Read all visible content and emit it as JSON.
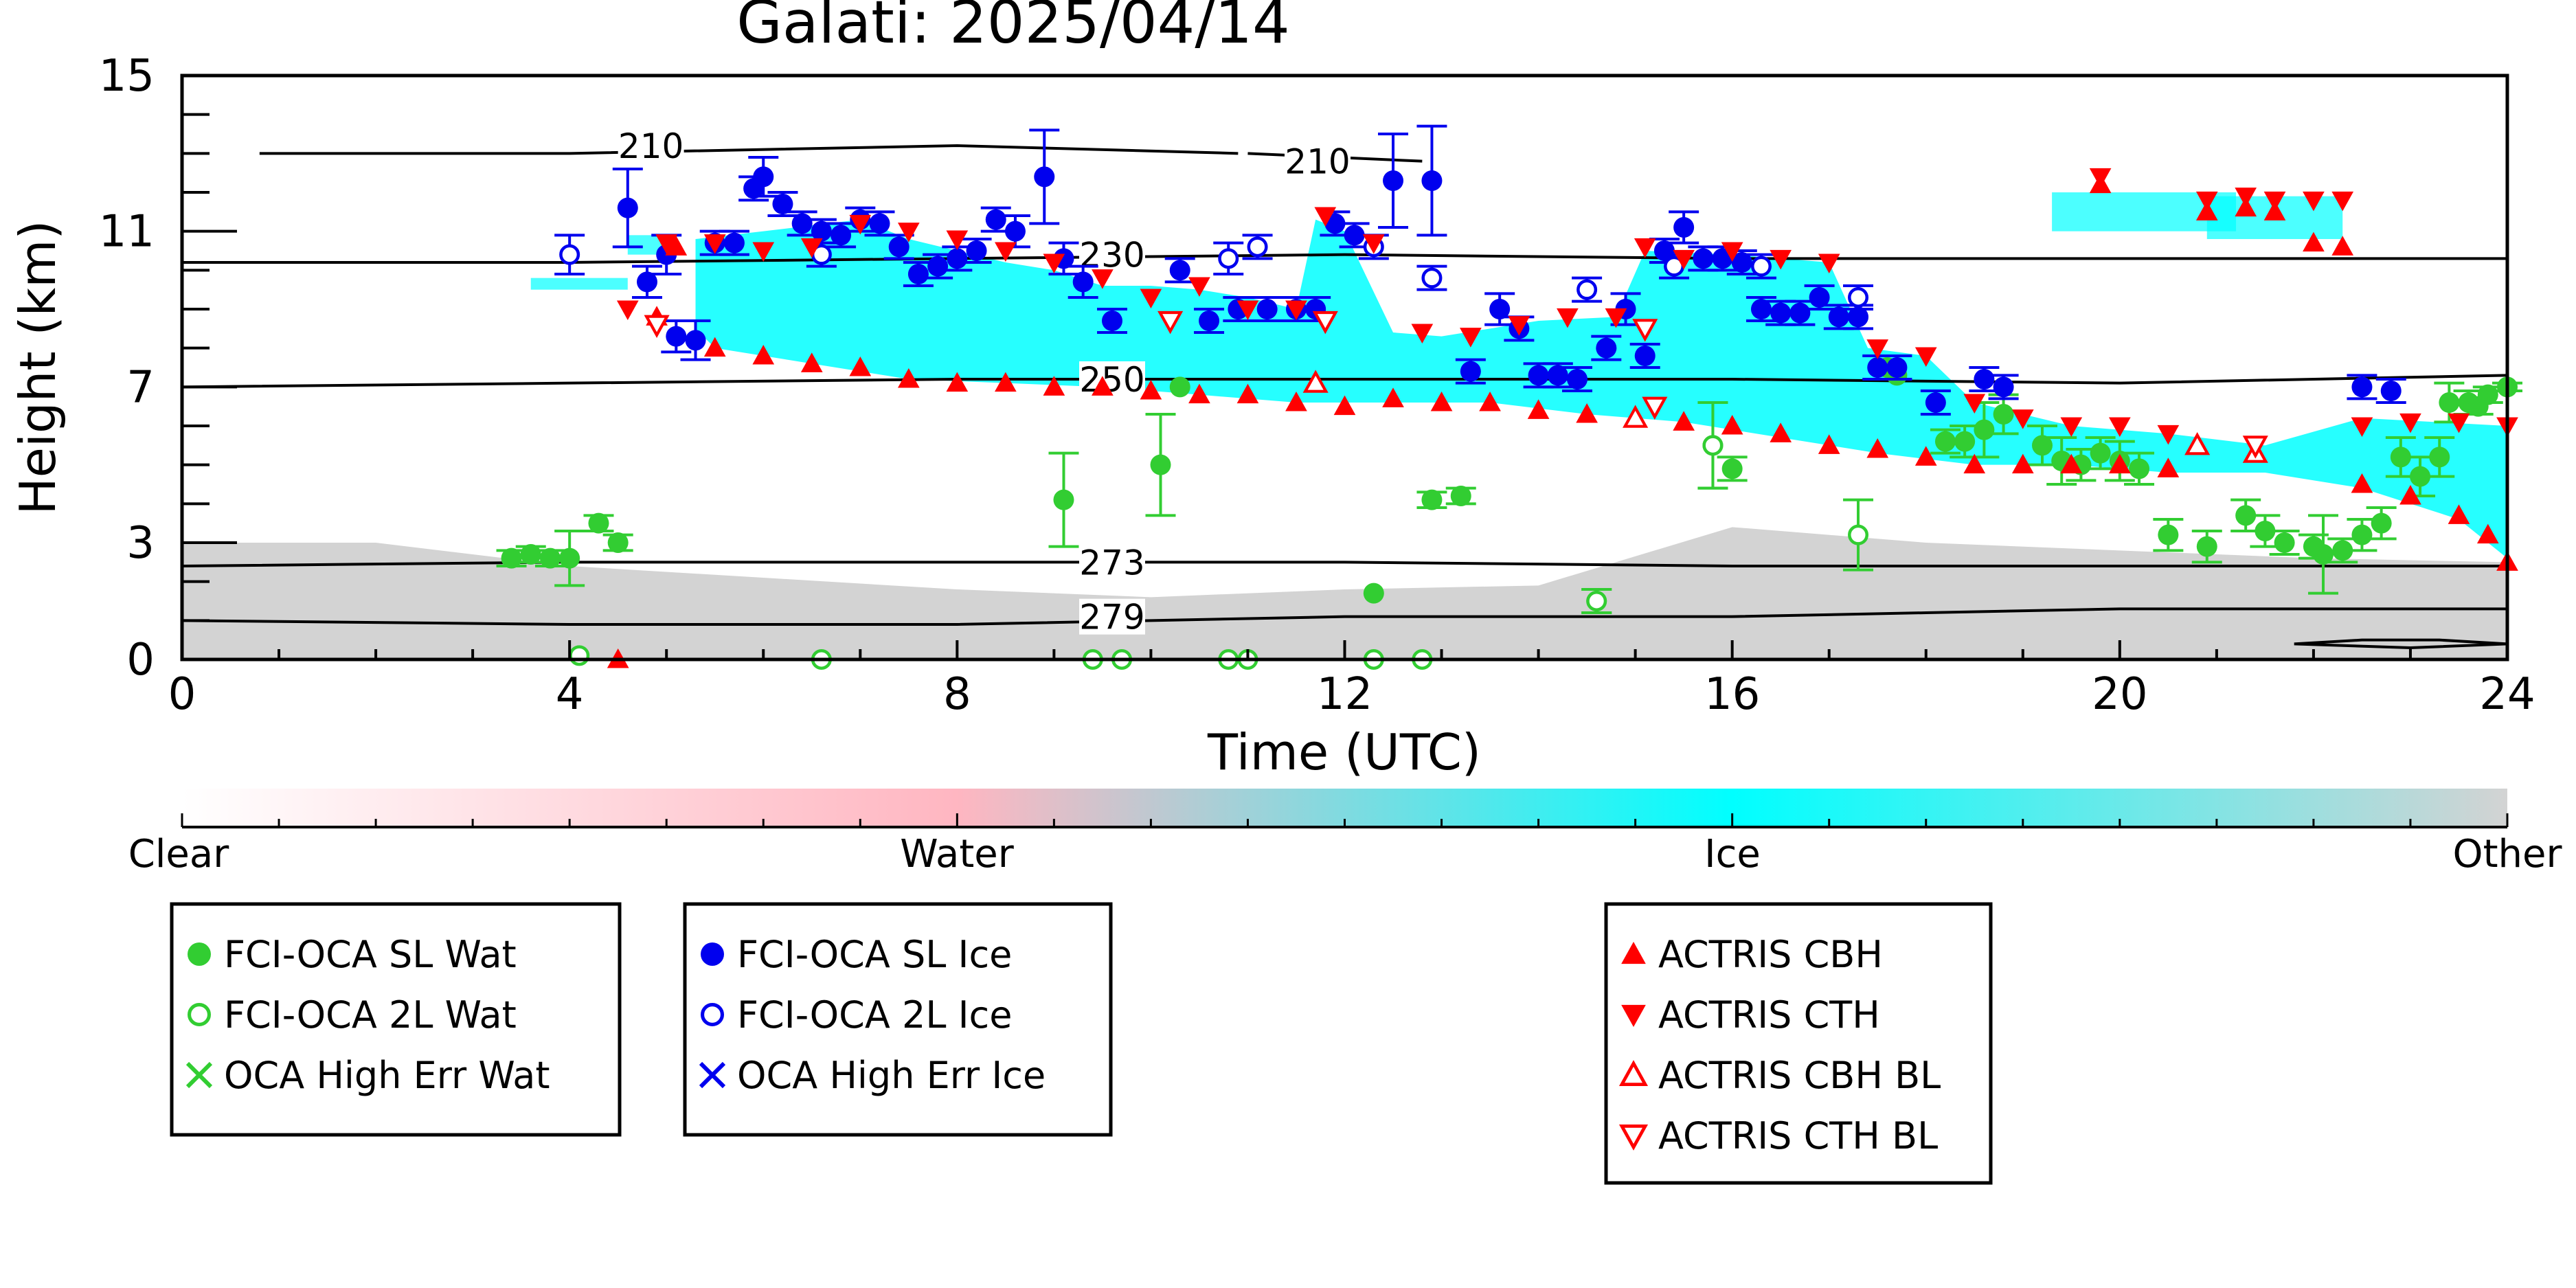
{
  "chart_data": {
    "type": "scatter",
    "title": "Galati: 2025/04/14",
    "xlabel": "Time (UTC)",
    "ylabel": "Height (km)",
    "xlim": [
      0,
      24
    ],
    "ylim": [
      0,
      15
    ],
    "xticks": [
      0,
      4,
      8,
      12,
      16,
      20,
      24
    ],
    "yticks": [
      0,
      3,
      7,
      11,
      15
    ],
    "grid": false,
    "colorbar": {
      "labels": [
        "Clear",
        "Water",
        "Ice",
        "Other"
      ],
      "colors": [
        "#ffffff",
        "#ffb6c1",
        "#00ffff",
        "#d3d3d3"
      ]
    },
    "contours": [
      {
        "label": "210",
        "x": [
          0.8,
          4.0,
          8.0,
          10.9
        ],
        "y": [
          13.0,
          13.0,
          13.2,
          13.0
        ]
      },
      {
        "label": "210",
        "x": [
          11.0,
          12.8
        ],
        "y": [
          13.0,
          12.8
        ]
      },
      {
        "label": "230",
        "x": [
          0,
          4,
          8,
          12,
          16,
          20,
          24
        ],
        "y": [
          10.2,
          10.2,
          10.3,
          10.4,
          10.3,
          10.3,
          10.3
        ]
      },
      {
        "label": "250",
        "x": [
          0,
          4,
          8,
          12,
          16,
          20,
          24
        ],
        "y": [
          7.0,
          7.1,
          7.2,
          7.2,
          7.2,
          7.1,
          7.3
        ]
      },
      {
        "label": "273",
        "x": [
          0,
          4,
          8,
          12,
          16,
          20,
          24
        ],
        "y": [
          2.4,
          2.5,
          2.5,
          2.5,
          2.4,
          2.4,
          2.4
        ]
      },
      {
        "label": "279",
        "x": [
          0,
          4,
          8,
          12,
          16,
          18,
          20,
          24
        ],
        "y": [
          1.0,
          0.9,
          0.9,
          1.1,
          1.1,
          1.2,
          1.3,
          1.3
        ]
      },
      {
        "label": "",
        "x": [
          21.8,
          22.5,
          23.3,
          24.0,
          23.0,
          21.8
        ],
        "y": [
          0.4,
          0.5,
          0.5,
          0.4,
          0.3,
          0.4
        ]
      }
    ],
    "series": [
      {
        "name": "FCI-OCA SL Wat",
        "color": "#32cd32",
        "marker": "filled-circle",
        "points": [
          [
            3.4,
            2.6,
            0.2
          ],
          [
            3.6,
            2.7,
            0.2
          ],
          [
            3.8,
            2.6,
            0.2
          ],
          [
            4.0,
            2.6,
            0.7
          ],
          [
            4.3,
            3.5,
            0.2
          ],
          [
            4.5,
            3.0,
            0.2
          ],
          [
            9.1,
            4.1,
            1.2
          ],
          [
            10.1,
            5.0,
            1.3
          ],
          [
            10.3,
            7.0,
            0
          ],
          [
            12.3,
            1.7,
            0
          ],
          [
            12.9,
            4.1,
            0.2
          ],
          [
            13.2,
            4.2,
            0.2
          ],
          [
            14.6,
            1.5,
            0.3
          ],
          [
            15.8,
            5.5,
            1.1
          ],
          [
            16.0,
            4.9,
            0.3
          ],
          [
            17.6,
            7.5,
            0
          ],
          [
            17.7,
            7.3,
            0
          ],
          [
            18.2,
            5.6,
            0.3
          ],
          [
            18.4,
            5.6,
            0.4
          ],
          [
            18.6,
            5.9,
            0.7
          ],
          [
            18.8,
            6.3,
            0.5
          ],
          [
            19.2,
            5.5,
            0.5
          ],
          [
            19.4,
            5.1,
            0.6
          ],
          [
            19.6,
            5.0,
            0.4
          ],
          [
            19.8,
            5.3,
            0.4
          ],
          [
            20.0,
            5.1,
            0.5
          ],
          [
            20.2,
            4.9,
            0.4
          ],
          [
            20.5,
            3.2,
            0.4
          ],
          [
            20.9,
            2.9,
            0.4
          ],
          [
            21.3,
            3.7,
            0.4
          ],
          [
            21.5,
            3.3,
            0.4
          ],
          [
            21.7,
            3.0,
            0.3
          ],
          [
            22.0,
            2.9,
            0.3
          ],
          [
            22.1,
            2.7,
            1.0
          ],
          [
            22.3,
            2.8,
            0.3
          ],
          [
            22.5,
            3.2,
            0.4
          ],
          [
            22.7,
            3.5,
            0.4
          ],
          [
            22.9,
            5.2,
            0.5
          ],
          [
            23.1,
            4.7,
            0.5
          ],
          [
            23.3,
            5.2,
            0.5
          ],
          [
            23.4,
            6.6,
            0.5
          ],
          [
            23.6,
            6.6,
            0.3
          ],
          [
            23.7,
            6.5,
            0.2
          ],
          [
            23.8,
            6.8,
            0.2
          ],
          [
            24.0,
            7.0,
            0.1
          ]
        ]
      },
      {
        "name": "FCI-OCA 2L Wat",
        "color": "#32cd32",
        "marker": "open-circle",
        "points": [
          [
            4.1,
            0.1,
            0
          ],
          [
            6.6,
            0.0,
            0
          ],
          [
            9.4,
            0.0,
            0
          ],
          [
            9.7,
            0.0,
            0
          ],
          [
            10.8,
            0.0,
            0
          ],
          [
            11.0,
            0.0,
            0
          ],
          [
            12.3,
            0.0,
            0
          ],
          [
            12.8,
            0.0,
            0
          ],
          [
            14.6,
            1.5,
            0.3
          ],
          [
            15.8,
            5.5,
            1.1
          ],
          [
            17.3,
            3.2,
            0.9
          ]
        ]
      },
      {
        "name": "OCA High Err Wat",
        "color": "#32cd32",
        "marker": "x",
        "points": []
      },
      {
        "name": "FCI-OCA SL Ice",
        "color": "#0000ee",
        "marker": "filled-circle",
        "points": [
          [
            4.6,
            11.6,
            1.0
          ],
          [
            4.8,
            9.7,
            0.4
          ],
          [
            5.0,
            10.4,
            0.5
          ],
          [
            5.1,
            8.3,
            0.4
          ],
          [
            5.3,
            8.2,
            0.5
          ],
          [
            5.5,
            10.7,
            0.3
          ],
          [
            5.7,
            10.7,
            0.3
          ],
          [
            5.9,
            12.1,
            0.3
          ],
          [
            6.0,
            12.4,
            0.5
          ],
          [
            6.2,
            11.7,
            0.3
          ],
          [
            6.4,
            11.2,
            0.3
          ],
          [
            6.6,
            11.0,
            0.3
          ],
          [
            6.8,
            10.9,
            0.3
          ],
          [
            7.0,
            11.3,
            0.3
          ],
          [
            7.2,
            11.2,
            0.3
          ],
          [
            7.4,
            10.6,
            0.3
          ],
          [
            7.6,
            9.9,
            0.3
          ],
          [
            7.8,
            10.1,
            0.3
          ],
          [
            8.0,
            10.3,
            0.3
          ],
          [
            8.2,
            10.5,
            0.3
          ],
          [
            8.4,
            11.3,
            0.3
          ],
          [
            8.6,
            11.0,
            0.4
          ],
          [
            8.9,
            12.4,
            1.2
          ],
          [
            9.1,
            10.3,
            0.4
          ],
          [
            9.3,
            9.7,
            0.4
          ],
          [
            9.6,
            8.7,
            0.3
          ],
          [
            10.3,
            10.0,
            0.3
          ],
          [
            10.6,
            8.7,
            0.3
          ],
          [
            10.9,
            9.0,
            0.3
          ],
          [
            11.2,
            9.0,
            0.3
          ],
          [
            11.5,
            9.0,
            0.3
          ],
          [
            11.7,
            9.0,
            0.3
          ],
          [
            11.9,
            11.2,
            0.3
          ],
          [
            12.1,
            10.9,
            0.3
          ],
          [
            12.5,
            12.3,
            1.2
          ],
          [
            12.9,
            12.3,
            1.4
          ],
          [
            13.3,
            7.4,
            0.3
          ],
          [
            13.6,
            9.0,
            0.4
          ],
          [
            13.8,
            8.5,
            0.3
          ],
          [
            14.0,
            7.3,
            0.3
          ],
          [
            14.2,
            7.3,
            0.3
          ],
          [
            14.4,
            7.2,
            0.3
          ],
          [
            14.7,
            8.0,
            0.3
          ],
          [
            14.9,
            9.0,
            0.4
          ],
          [
            15.1,
            7.8,
            0.3
          ],
          [
            15.3,
            10.5,
            0.3
          ],
          [
            15.5,
            11.1,
            0.4
          ],
          [
            15.7,
            10.3,
            0.3
          ],
          [
            15.9,
            10.3,
            0.3
          ],
          [
            16.1,
            10.2,
            0.3
          ],
          [
            16.3,
            9.0,
            0.3
          ],
          [
            16.5,
            8.9,
            0.3
          ],
          [
            16.7,
            8.9,
            0.3
          ],
          [
            16.9,
            9.3,
            0.3
          ],
          [
            17.1,
            8.8,
            0.3
          ],
          [
            17.3,
            8.8,
            0.3
          ],
          [
            17.5,
            7.5,
            0.3
          ],
          [
            17.7,
            7.5,
            0.3
          ],
          [
            18.1,
            6.6,
            0.3
          ],
          [
            18.6,
            7.2,
            0.3
          ],
          [
            18.8,
            7.0,
            0.3
          ],
          [
            22.5,
            7.0,
            0.3
          ],
          [
            22.8,
            6.9,
            0.3
          ]
        ]
      },
      {
        "name": "FCI-OCA 2L Ice",
        "color": "#0000ee",
        "marker": "open-circle",
        "points": [
          [
            4.0,
            10.4,
            0.5
          ],
          [
            6.6,
            10.4,
            0.3
          ],
          [
            10.8,
            10.3,
            0.4
          ],
          [
            11.1,
            10.6,
            0.3
          ],
          [
            12.3,
            10.6,
            0.3
          ],
          [
            12.9,
            9.8,
            0.3
          ],
          [
            14.5,
            9.5,
            0.3
          ],
          [
            15.4,
            10.1,
            0.3
          ],
          [
            16.3,
            10.1,
            0.3
          ],
          [
            17.3,
            9.3,
            0.3
          ]
        ]
      },
      {
        "name": "OCA High Err Ice",
        "color": "#0000ee",
        "marker": "x",
        "points": []
      },
      {
        "name": "ACTRIS CBH",
        "color": "#ff0000",
        "marker": "up-triangle",
        "points": [
          [
            4.5,
            0.0
          ],
          [
            4.9,
            8.8
          ],
          [
            5.1,
            10.6
          ],
          [
            5.5,
            8.0
          ],
          [
            6.0,
            7.8
          ],
          [
            6.5,
            7.6
          ],
          [
            7.0,
            7.5
          ],
          [
            7.5,
            7.2
          ],
          [
            8.0,
            7.1
          ],
          [
            8.5,
            7.1
          ],
          [
            9.0,
            7.0
          ],
          [
            9.5,
            7.0
          ],
          [
            10.0,
            6.9
          ],
          [
            10.5,
            6.8
          ],
          [
            11.0,
            6.8
          ],
          [
            11.5,
            6.6
          ],
          [
            12.0,
            6.5
          ],
          [
            12.5,
            6.7
          ],
          [
            13.0,
            6.6
          ],
          [
            13.5,
            6.6
          ],
          [
            14.0,
            6.4
          ],
          [
            14.5,
            6.3
          ],
          [
            15.0,
            6.2
          ],
          [
            15.5,
            6.1
          ],
          [
            16.0,
            6.0
          ],
          [
            16.5,
            5.8
          ],
          [
            17.0,
            5.5
          ],
          [
            17.5,
            5.4
          ],
          [
            18.0,
            5.2
          ],
          [
            18.5,
            5.0
          ],
          [
            19.0,
            5.0
          ],
          [
            19.5,
            5.0
          ],
          [
            19.8,
            12.2
          ],
          [
            20.0,
            5.0
          ],
          [
            20.5,
            4.9
          ],
          [
            20.9,
            11.5
          ],
          [
            21.3,
            11.6
          ],
          [
            21.6,
            11.5
          ],
          [
            22.0,
            10.7
          ],
          [
            22.3,
            10.6
          ],
          [
            22.5,
            4.5
          ],
          [
            23.0,
            4.2
          ],
          [
            23.5,
            3.7
          ],
          [
            23.8,
            3.2
          ],
          [
            24.0,
            2.5
          ]
        ]
      },
      {
        "name": "ACTRIS CTH",
        "color": "#ff0000",
        "marker": "down-triangle",
        "points": [
          [
            4.6,
            9.0
          ],
          [
            5.0,
            10.7
          ],
          [
            5.5,
            10.7
          ],
          [
            6.0,
            10.5
          ],
          [
            6.5,
            10.6
          ],
          [
            7.0,
            11.2
          ],
          [
            7.5,
            11.0
          ],
          [
            8.0,
            10.8
          ],
          [
            8.5,
            10.5
          ],
          [
            9.0,
            10.2
          ],
          [
            9.5,
            9.8
          ],
          [
            10.0,
            9.3
          ],
          [
            10.5,
            9.6
          ],
          [
            11.0,
            9.0
          ],
          [
            11.5,
            9.0
          ],
          [
            11.8,
            11.4
          ],
          [
            12.3,
            10.7
          ],
          [
            12.8,
            8.4
          ],
          [
            13.3,
            8.3
          ],
          [
            13.8,
            8.6
          ],
          [
            14.3,
            8.8
          ],
          [
            14.8,
            8.8
          ],
          [
            15.1,
            10.6
          ],
          [
            15.5,
            10.3
          ],
          [
            16.0,
            10.5
          ],
          [
            16.5,
            10.3
          ],
          [
            17.0,
            10.2
          ],
          [
            17.5,
            8.0
          ],
          [
            18.0,
            7.8
          ],
          [
            18.5,
            6.6
          ],
          [
            19.0,
            6.2
          ],
          [
            19.5,
            6.0
          ],
          [
            19.8,
            12.4
          ],
          [
            20.0,
            6.0
          ],
          [
            20.5,
            5.8
          ],
          [
            20.9,
            11.8
          ],
          [
            21.3,
            11.9
          ],
          [
            21.6,
            11.8
          ],
          [
            22.0,
            11.8
          ],
          [
            22.3,
            11.8
          ],
          [
            22.5,
            6.0
          ],
          [
            23.0,
            6.1
          ],
          [
            23.5,
            6.1
          ],
          [
            24.0,
            6.0
          ]
        ]
      },
      {
        "name": "ACTRIS CBH BL",
        "color": "#ff0000",
        "marker": "open-up-triangle",
        "points": [
          [
            11.7,
            7.1
          ],
          [
            15.0,
            6.2
          ],
          [
            20.8,
            5.5
          ],
          [
            21.4,
            5.3
          ]
        ]
      },
      {
        "name": "ACTRIS CTH BL",
        "color": "#ff0000",
        "marker": "open-down-triangle",
        "points": [
          [
            4.9,
            8.6
          ],
          [
            10.2,
            8.7
          ],
          [
            11.8,
            8.7
          ],
          [
            15.2,
            6.5
          ],
          [
            15.1,
            8.5
          ],
          [
            21.4,
            5.5
          ]
        ]
      }
    ],
    "legend_groups": [
      [
        "FCI-OCA SL Wat",
        "FCI-OCA 2L Wat",
        "OCA High Err Wat"
      ],
      [
        "FCI-OCA SL Ice",
        "FCI-OCA 2L Ice",
        "OCA High Err Ice"
      ],
      [
        "ACTRIS CBH",
        "ACTRIS CTH",
        "ACTRIS CBH BL",
        "ACTRIS CTH BL"
      ]
    ]
  }
}
